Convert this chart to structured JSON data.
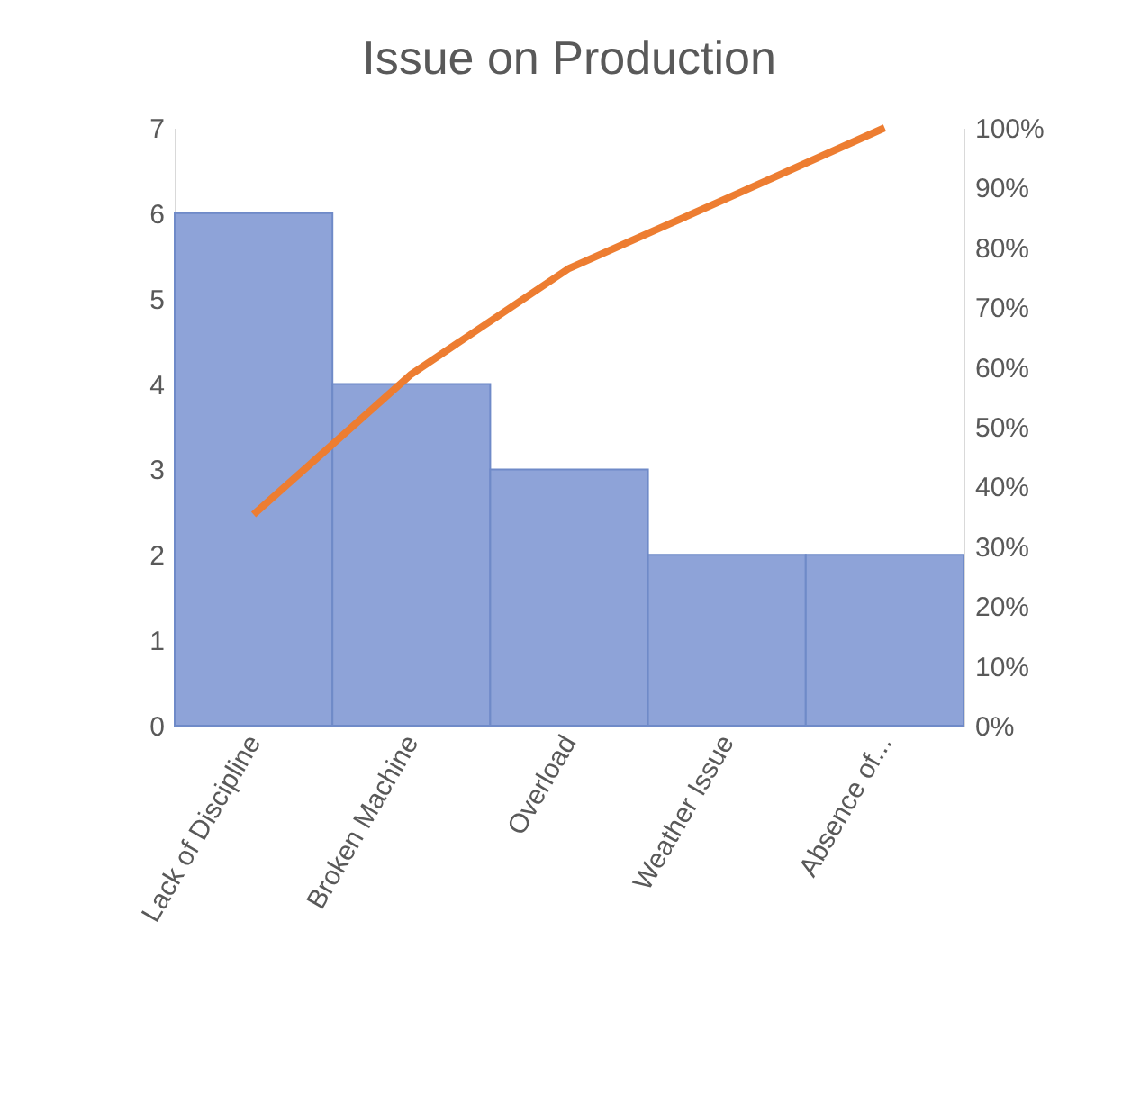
{
  "chart_data": {
    "type": "bar",
    "title": "Issue on Production",
    "categories": [
      "Lack of Discipline",
      "Broken Machine",
      "Overload",
      "Weather Issue",
      "Absence of..."
    ],
    "series": [
      {
        "color": "#8ea3d8",
        "values": [
          6,
          4,
          3,
          2,
          2
        ]
      },
      {
        "type": "line",
        "color": "#ed7d31",
        "axis": "y2",
        "values": [
          35.3,
          58.8,
          76.5,
          88.2,
          100
        ]
      }
    ],
    "ylim": [
      0,
      7
    ],
    "yticks": [
      0,
      1,
      2,
      3,
      4,
      5,
      6,
      7
    ],
    "y2lim": [
      0,
      100
    ],
    "y2ticks": [
      {
        "value": 0,
        "label": "0%"
      },
      {
        "value": 10,
        "label": "10%"
      },
      {
        "value": 20,
        "label": "20%"
      },
      {
        "value": 30,
        "label": "30%"
      },
      {
        "value": 40,
        "label": "40%"
      },
      {
        "value": 50,
        "label": "50%"
      },
      {
        "value": 60,
        "label": "60%"
      },
      {
        "value": 70,
        "label": "70%"
      },
      {
        "value": 80,
        "label": "80%"
      },
      {
        "value": 90,
        "label": "90%"
      },
      {
        "value": 100,
        "label": "100%"
      }
    ],
    "grid": false
  }
}
